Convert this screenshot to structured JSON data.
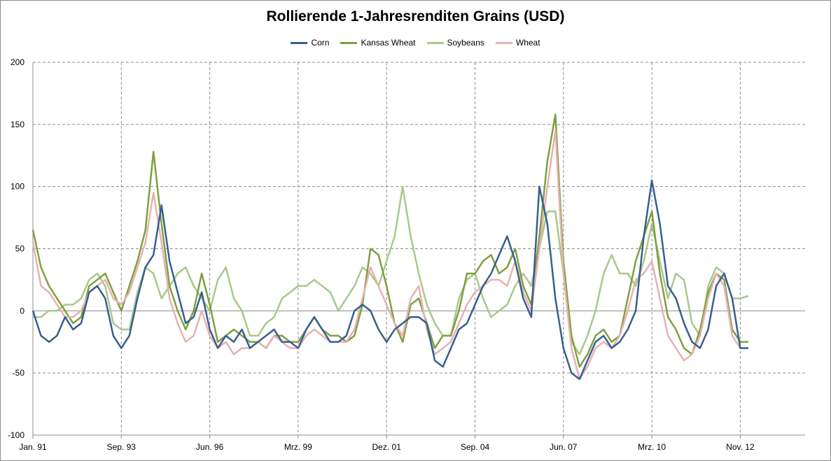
{
  "chart_data": {
    "type": "line",
    "title": "Rollierende 1-Jahresrenditen Grains (USD)",
    "xlabel": "",
    "ylabel": "",
    "ylim": [
      -100,
      200
    ],
    "yticks": [
      -100,
      -50,
      0,
      50,
      100,
      150,
      200
    ],
    "xlim": [
      "1991-01",
      "2013-10"
    ],
    "xticks": [
      {
        "label": "Jan. 91",
        "date": "1991-01"
      },
      {
        "label": "Sep. 93",
        "date": "1993-09"
      },
      {
        "label": "Jun. 96",
        "date": "1996-06"
      },
      {
        "label": "Mrz. 99",
        "date": "1999-03"
      },
      {
        "label": "Dez. 01",
        "date": "2001-12"
      },
      {
        "label": "Sep. 04",
        "date": "2004-09"
      },
      {
        "label": "Jun. 07",
        "date": "2007-06"
      },
      {
        "label": "Mrz. 10",
        "date": "2010-03"
      },
      {
        "label": "Nov. 12",
        "date": "2012-11"
      }
    ],
    "grid": true,
    "legend_position": "top",
    "x": [
      "1991-01",
      "1991-04",
      "1991-07",
      "1991-10",
      "1992-01",
      "1992-04",
      "1992-07",
      "1992-10",
      "1993-01",
      "1993-04",
      "1993-07",
      "1993-10",
      "1994-01",
      "1994-04",
      "1994-07",
      "1994-10",
      "1995-01",
      "1995-04",
      "1995-07",
      "1995-10",
      "1996-01",
      "1996-04",
      "1996-07",
      "1996-10",
      "1997-01",
      "1997-04",
      "1997-07",
      "1997-10",
      "1998-01",
      "1998-04",
      "1998-07",
      "1998-10",
      "1999-01",
      "1999-04",
      "1999-07",
      "1999-10",
      "2000-01",
      "2000-04",
      "2000-07",
      "2000-10",
      "2001-01",
      "2001-04",
      "2001-07",
      "2001-10",
      "2002-01",
      "2002-04",
      "2002-07",
      "2002-10",
      "2003-01",
      "2003-04",
      "2003-07",
      "2003-10",
      "2004-01",
      "2004-04",
      "2004-07",
      "2004-10",
      "2005-01",
      "2005-04",
      "2005-07",
      "2005-10",
      "2006-01",
      "2006-04",
      "2006-07",
      "2006-10",
      "2007-01",
      "2007-04",
      "2007-07",
      "2007-10",
      "2008-01",
      "2008-04",
      "2008-07",
      "2008-10",
      "2009-01",
      "2009-04",
      "2009-07",
      "2009-10",
      "2010-01",
      "2010-04",
      "2010-07",
      "2010-10",
      "2011-01",
      "2011-04",
      "2011-07",
      "2011-10",
      "2012-01",
      "2012-04",
      "2012-07",
      "2012-10",
      "2013-01",
      "2013-04"
    ],
    "series": [
      {
        "name": "Corn",
        "color": "#375f8f",
        "values": [
          0,
          -20,
          -25,
          -20,
          -5,
          -15,
          -10,
          15,
          20,
          10,
          -20,
          -30,
          -20,
          10,
          35,
          45,
          85,
          40,
          15,
          -10,
          -5,
          15,
          -15,
          -30,
          -20,
          -25,
          -15,
          -30,
          -25,
          -20,
          -15,
          -25,
          -25,
          -30,
          -15,
          -5,
          -15,
          -25,
          -25,
          -20,
          0,
          5,
          0,
          -15,
          -25,
          -15,
          -10,
          -5,
          -5,
          -10,
          -40,
          -45,
          -30,
          -15,
          -10,
          5,
          20,
          30,
          45,
          60,
          40,
          10,
          -5,
          100,
          70,
          10,
          -30,
          -50,
          -55,
          -40,
          -25,
          -20,
          -30,
          -25,
          -15,
          0,
          60,
          105,
          70,
          20,
          10,
          -10,
          -25,
          -30,
          -15,
          20,
          30,
          10,
          -30,
          -30
        ]
      },
      {
        "name": "Kansas Wheat",
        "color": "#7fa040",
        "values": [
          65,
          35,
          20,
          10,
          0,
          -10,
          -5,
          20,
          25,
          30,
          15,
          0,
          20,
          40,
          65,
          128,
          70,
          20,
          0,
          -15,
          0,
          30,
          5,
          -25,
          -20,
          -15,
          -20,
          -25,
          -25,
          -30,
          -20,
          -20,
          -25,
          -25,
          -15,
          -5,
          -15,
          -20,
          -20,
          -25,
          -20,
          5,
          50,
          45,
          20,
          -10,
          -25,
          5,
          10,
          -10,
          -30,
          -20,
          -20,
          0,
          30,
          30,
          40,
          45,
          30,
          35,
          50,
          20,
          5,
          60,
          120,
          158,
          40,
          -20,
          -45,
          -35,
          -20,
          -15,
          -25,
          -20,
          10,
          40,
          60,
          80,
          30,
          -5,
          -15,
          -30,
          -35,
          -15,
          15,
          30,
          25,
          -15,
          -25,
          -25
        ]
      },
      {
        "name": "Soybeans",
        "color": "#a8c98a",
        "values": [
          -5,
          -5,
          0,
          0,
          5,
          5,
          10,
          25,
          30,
          20,
          -10,
          -15,
          -15,
          15,
          35,
          30,
          10,
          20,
          30,
          35,
          20,
          10,
          0,
          25,
          35,
          10,
          0,
          -20,
          -20,
          -10,
          -5,
          10,
          15,
          20,
          20,
          25,
          20,
          15,
          0,
          10,
          20,
          35,
          30,
          20,
          40,
          60,
          100,
          60,
          30,
          5,
          -10,
          -20,
          -20,
          10,
          25,
          30,
          10,
          -5,
          0,
          5,
          20,
          30,
          20,
          50,
          80,
          80,
          30,
          -25,
          -35,
          -20,
          0,
          30,
          45,
          30,
          30,
          20,
          40,
          70,
          40,
          10,
          30,
          25,
          -10,
          -20,
          20,
          35,
          30,
          10,
          10,
          12
        ]
      },
      {
        "name": "Wheat",
        "color": "#e6b2b2",
        "values": [
          55,
          20,
          15,
          5,
          -5,
          -5,
          0,
          15,
          20,
          25,
          10,
          5,
          15,
          35,
          55,
          95,
          55,
          10,
          -10,
          -25,
          -20,
          0,
          -20,
          -30,
          -25,
          -35,
          -30,
          -30,
          -25,
          -30,
          -20,
          -25,
          -30,
          -30,
          -20,
          -15,
          -20,
          -25,
          -25,
          -25,
          -15,
          10,
          35,
          20,
          5,
          -10,
          -20,
          10,
          20,
          -15,
          -35,
          -30,
          -25,
          -10,
          5,
          15,
          20,
          25,
          25,
          20,
          40,
          15,
          0,
          50,
          100,
          145,
          30,
          -30,
          -55,
          -45,
          -30,
          -25,
          -30,
          -20,
          0,
          25,
          30,
          40,
          10,
          -20,
          -30,
          -40,
          -35,
          -20,
          10,
          30,
          20,
          -20,
          -30,
          -30
        ]
      }
    ]
  }
}
